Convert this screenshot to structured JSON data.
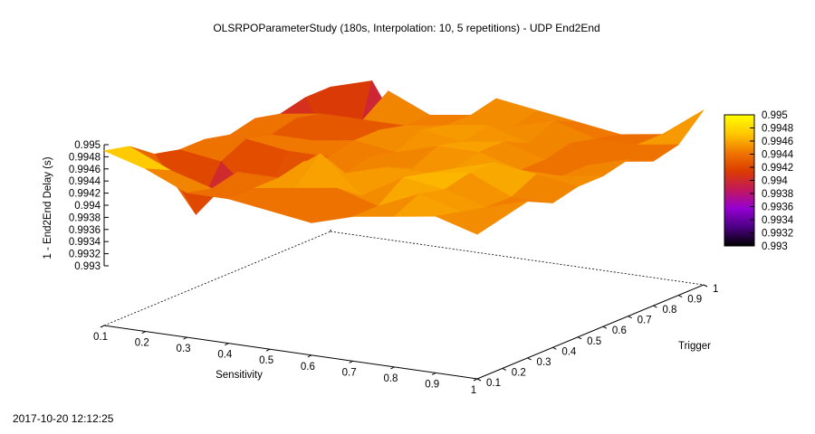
{
  "chart_data": {
    "type": "surface3d",
    "title": "OLSRPOParameterStudy (180s, Interpolation: 10, 5 repetitions) - UDP End2End",
    "xlabel": "Sensitivity",
    "ylabel": "Trigger",
    "zlabel": "1 - End2End Delay  (s)",
    "x_ticks": [
      "0.1",
      "0.2",
      "0.3",
      "0.4",
      "0.5",
      "0.6",
      "0.7",
      "0.8",
      "0.9",
      "1"
    ],
    "y_ticks": [
      "0.1",
      "0.2",
      "0.3",
      "0.4",
      "0.5",
      "0.6",
      "0.7",
      "0.8",
      "0.9",
      "1"
    ],
    "z_ticks": [
      "0.995",
      "0.9948",
      "0.9946",
      "0.9944",
      "0.9942",
      "0.994",
      "0.9938",
      "0.9936",
      "0.9934",
      "0.9932",
      "0.993"
    ],
    "zlim": [
      0.993,
      0.995
    ],
    "colorbar": {
      "range": [
        0.993,
        0.995
      ],
      "ticks": [
        "0.995",
        "0.9948",
        "0.9946",
        "0.9944",
        "0.9942",
        "0.994",
        "0.9938",
        "0.9936",
        "0.9934",
        "0.9932",
        "0.993"
      ],
      "colors": [
        "#000000",
        "#4b0082",
        "#9400d3",
        "#c2185b",
        "#dc3c00",
        "#f07800",
        "#ffc800",
        "#ffff00"
      ]
    },
    "x": [
      0.1,
      0.2,
      0.3,
      0.4,
      0.5,
      0.6,
      0.7,
      0.8,
      0.9,
      1.0
    ],
    "y": [
      0.1,
      0.2,
      0.3,
      0.4,
      0.5,
      0.6,
      0.7,
      0.8,
      0.9,
      1.0
    ],
    "z": [
      [
        0.9949,
        0.9947,
        0.9944,
        0.9944,
        0.9943,
        0.9942,
        0.9944,
        0.9945,
        0.9946,
        0.9944
      ],
      [
        0.9948,
        0.9945,
        0.9943,
        0.9944,
        0.9945,
        0.9946,
        0.9944,
        0.9947,
        0.9945,
        0.9945
      ],
      [
        0.9945,
        0.9936,
        0.9944,
        0.9944,
        0.9949,
        0.9943,
        0.9947,
        0.9946,
        0.9944,
        0.9946
      ],
      [
        0.9944,
        0.9943,
        0.9937,
        0.9945,
        0.9944,
        0.9946,
        0.9946,
        0.9947,
        0.9944,
        0.9944
      ],
      [
        0.9944,
        0.9945,
        0.9944,
        0.9944,
        0.9945,
        0.9944,
        0.9945,
        0.9947,
        0.9946,
        0.9945
      ],
      [
        0.9943,
        0.9944,
        0.9944,
        0.9945,
        0.9944,
        0.9946,
        0.9946,
        0.9944,
        0.9944,
        0.9945
      ],
      [
        0.9944,
        0.9945,
        0.9938,
        0.9945,
        0.9946,
        0.9945,
        0.9946,
        0.9944,
        0.9944,
        0.9946
      ],
      [
        0.9943,
        0.9944,
        0.9944,
        0.9944,
        0.9945,
        0.9946,
        0.9944,
        0.9945,
        0.9943,
        0.9944
      ],
      [
        0.9944,
        0.9931,
        0.9947,
        0.9944,
        0.9945,
        0.9944,
        0.9946,
        0.9944,
        0.9944,
        0.9945
      ],
      [
        0.9944,
        0.9946,
        0.9935,
        0.9938,
        0.9946,
        0.9945,
        0.9944,
        0.9943,
        0.9944,
        0.9949
      ]
    ]
  },
  "timestamp": "2017-10-20 12:12:25"
}
